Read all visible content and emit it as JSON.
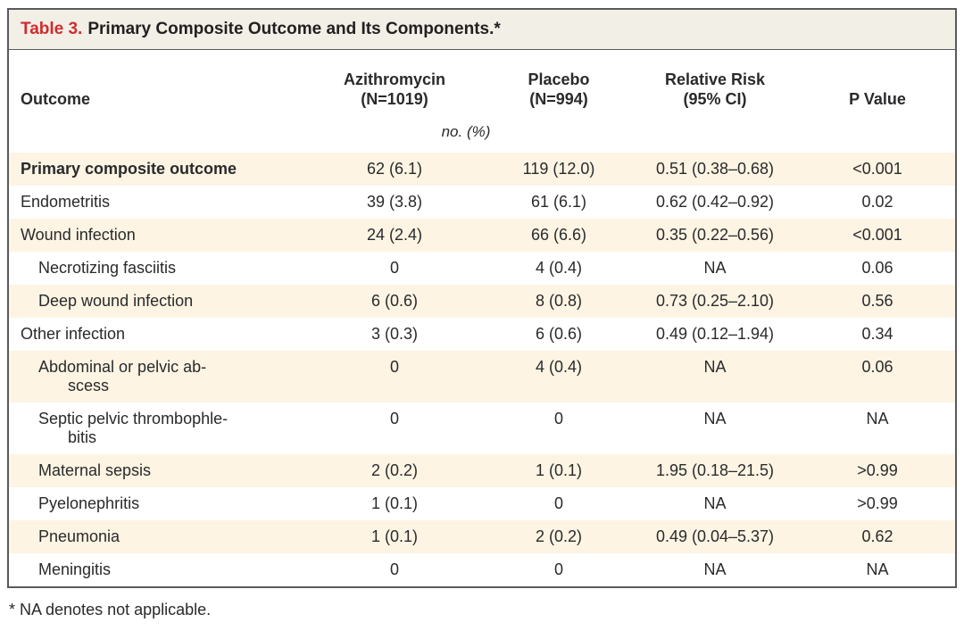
{
  "table": {
    "title_label": "Table 3.",
    "title_text": "Primary Composite Outcome and Its Components.*",
    "header": {
      "outcome": "Outcome",
      "azithromycin": [
        "Azithromycin",
        "(N=1019)"
      ],
      "placebo": [
        "Placebo",
        "(N=994)"
      ],
      "relative_risk": [
        "Relative Risk",
        "(95% CI)"
      ],
      "p_value": "P Value"
    },
    "units_label": "no. (%)",
    "rows": [
      {
        "outcome": "Primary composite outcome",
        "azithromycin": "62 (6.1)",
        "placebo": "119 (12.0)",
        "relative_risk": "0.51 (0.38–0.68)",
        "p_value": "<0.001",
        "bold": true,
        "indent": false,
        "shaded": true
      },
      {
        "outcome": "Endometritis",
        "azithromycin": "39 (3.8)",
        "placebo": "61 (6.1)",
        "relative_risk": "0.62 (0.42–0.92)",
        "p_value": "0.02",
        "bold": false,
        "indent": false,
        "shaded": false
      },
      {
        "outcome": "Wound infection",
        "azithromycin": "24 (2.4)",
        "placebo": "66 (6.6)",
        "relative_risk": "0.35 (0.22–0.56)",
        "p_value": "<0.001",
        "bold": false,
        "indent": false,
        "shaded": true
      },
      {
        "outcome": "Necrotizing fasciitis",
        "azithromycin": "0",
        "placebo": "4 (0.4)",
        "relative_risk": "NA",
        "p_value": "0.06",
        "bold": false,
        "indent": true,
        "shaded": false
      },
      {
        "outcome": "Deep wound infection",
        "azithromycin": "6 (0.6)",
        "placebo": "8 (0.8)",
        "relative_risk": "0.73 (0.25–2.10)",
        "p_value": "0.56",
        "bold": false,
        "indent": true,
        "shaded": true
      },
      {
        "outcome": "Other infection",
        "azithromycin": "3 (0.3)",
        "placebo": "6 (0.6)",
        "relative_risk": "0.49 (0.12–1.94)",
        "p_value": "0.34",
        "bold": false,
        "indent": false,
        "shaded": false
      },
      {
        "outcome": "Abdominal or pelvic ab-\nscess",
        "azithromycin": "0",
        "placebo": "4 (0.4)",
        "relative_risk": "NA",
        "p_value": "0.06",
        "bold": false,
        "indent": true,
        "shaded": true
      },
      {
        "outcome": "Septic pelvic thrombophle-\nbitis",
        "azithromycin": "0",
        "placebo": "0",
        "relative_risk": "NA",
        "p_value": "NA",
        "bold": false,
        "indent": true,
        "shaded": false
      },
      {
        "outcome": "Maternal sepsis",
        "azithromycin": "2 (0.2)",
        "placebo": "1 (0.1)",
        "relative_risk": "1.95 (0.18–21.5)",
        "p_value": ">0.99",
        "bold": false,
        "indent": true,
        "shaded": true
      },
      {
        "outcome": "Pyelonephritis",
        "azithromycin": "1 (0.1)",
        "placebo": "0",
        "relative_risk": "NA",
        "p_value": ">0.99",
        "bold": false,
        "indent": true,
        "shaded": false
      },
      {
        "outcome": "Pneumonia",
        "azithromycin": "1 (0.1)",
        "placebo": "2 (0.2)",
        "relative_risk": "0.49 (0.04–5.37)",
        "p_value": "0.62",
        "bold": false,
        "indent": true,
        "shaded": true
      },
      {
        "outcome": "Meningitis",
        "azithromycin": "0",
        "placebo": "0",
        "relative_risk": "NA",
        "p_value": "NA",
        "bold": false,
        "indent": true,
        "shaded": false
      }
    ],
    "footnote": "* NA denotes not applicable."
  },
  "colors": {
    "accent_red": "#d02c2f",
    "title_bar_bg": "#f2efe7",
    "stripe_bg": "#fdf4e3",
    "frame_border": "#595a5c"
  }
}
